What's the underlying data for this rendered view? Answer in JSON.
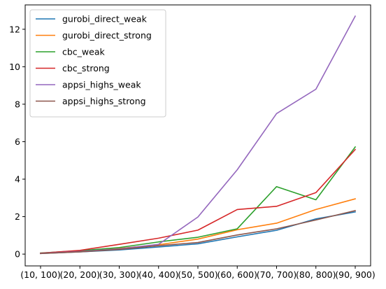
{
  "chart_data": {
    "type": "line",
    "title": "",
    "xlabel": "",
    "ylabel": "",
    "categories": [
      "(10, 100)",
      "(20, 200)",
      "(30, 300)",
      "(40, 400)",
      "(50, 500)",
      "(60, 600)",
      "(70, 700)",
      "(80, 800)",
      "(90, 900)"
    ],
    "ylim": [
      -0.63,
      13.3
    ],
    "yticks": [
      0,
      2,
      4,
      6,
      8,
      10,
      12
    ],
    "grid": false,
    "legend_position": "top-left",
    "series": [
      {
        "name": "gurobi_direct_weak",
        "color": "#1f77b4",
        "values": [
          0.03,
          0.12,
          0.22,
          0.38,
          0.55,
          0.92,
          1.27,
          1.88,
          2.25
        ]
      },
      {
        "name": "gurobi_direct_strong",
        "color": "#ff7f0e",
        "values": [
          0.05,
          0.15,
          0.3,
          0.5,
          0.8,
          1.3,
          1.65,
          2.38,
          2.95
        ]
      },
      {
        "name": "cbc_weak",
        "color": "#2ca02c",
        "values": [
          0.06,
          0.18,
          0.35,
          0.65,
          0.9,
          1.35,
          3.6,
          2.9,
          5.72
        ]
      },
      {
        "name": "cbc_strong",
        "color": "#d62728",
        "values": [
          0.05,
          0.2,
          0.52,
          0.85,
          1.28,
          2.38,
          2.55,
          3.28,
          5.58
        ]
      },
      {
        "name": "appsi_highs_weak",
        "color": "#9467bd",
        "values": [
          0.04,
          0.14,
          0.28,
          0.52,
          1.98,
          4.5,
          7.5,
          8.8,
          12.7
        ]
      },
      {
        "name": "appsi_highs_strong",
        "color": "#8c564b",
        "values": [
          0.03,
          0.12,
          0.25,
          0.45,
          0.62,
          1.02,
          1.35,
          1.82,
          2.32
        ]
      }
    ]
  }
}
